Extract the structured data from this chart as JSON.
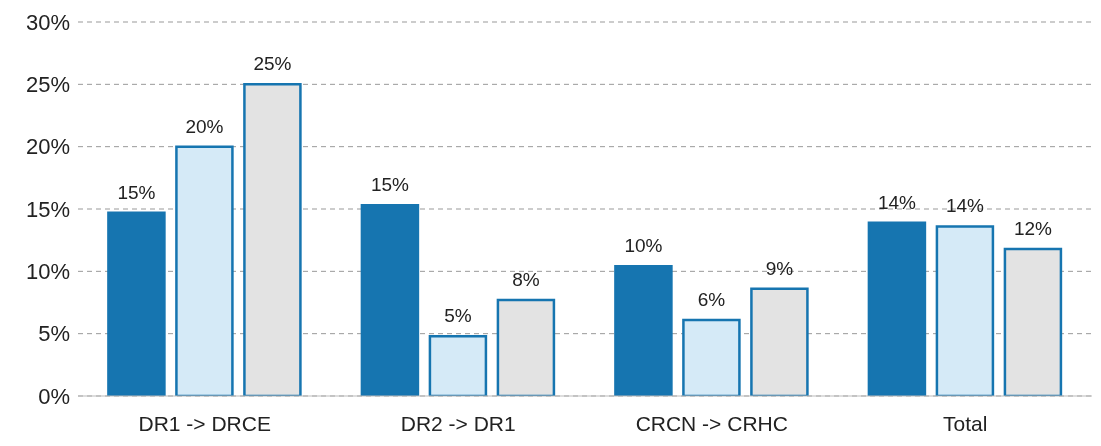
{
  "chart_data": {
    "type": "bar",
    "categories": [
      "DR1 -> DRCE",
      "DR2 -> DR1",
      "CRCN -> CRHC",
      "Total"
    ],
    "series": [
      {
        "color": "#1675b0",
        "values": [
          14.7,
          15.3,
          10.4,
          13.9
        ],
        "value_labels": [
          "15%",
          "15%",
          "10%",
          "14%"
        ]
      },
      {
        "color": "#d5eaf7",
        "values": [
          20,
          4.8,
          6.1,
          13.6
        ],
        "value_labels": [
          "20%",
          "5%",
          "6%",
          "14%"
        ]
      },
      {
        "color": "#e3e3e3",
        "values": [
          25,
          7.7,
          8.6,
          11.8
        ],
        "value_labels": [
          "25%",
          "8%",
          "9%",
          "12%"
        ]
      }
    ],
    "ylim": [
      0,
      30
    ],
    "yticks": [
      {
        "value": 0,
        "label": "0%"
      },
      {
        "value": 5,
        "label": "5%"
      },
      {
        "value": 10,
        "label": "10%"
      },
      {
        "value": 15,
        "label": "15%"
      },
      {
        "value": 20,
        "label": "20%"
      },
      {
        "value": 25,
        "label": "25%"
      },
      {
        "value": 30,
        "label": "30%"
      }
    ],
    "grid": "y",
    "legend": false
  }
}
